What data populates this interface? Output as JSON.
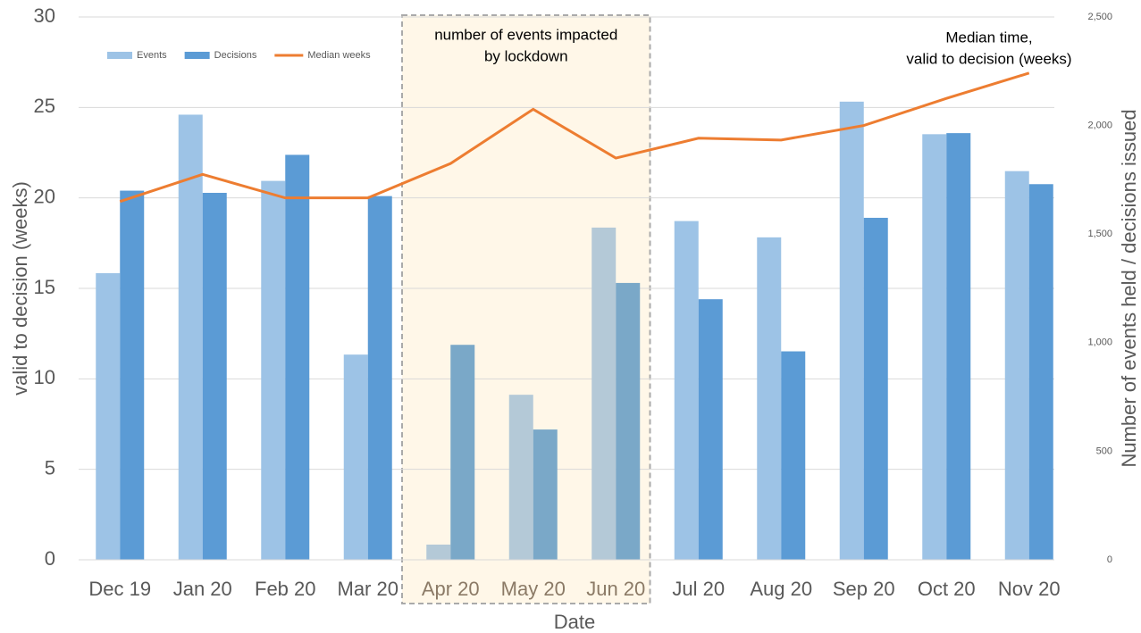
{
  "chart_data": {
    "type": "bar",
    "x_label": "Date",
    "y_label": "valid to decision (weeks)",
    "y2_label": "Number of events held / decisions issued",
    "categories": [
      "Dec 19",
      "Jan 20",
      "Feb 20",
      "Mar 20",
      "Apr 20",
      "May 20",
      "Jun 20",
      "Jul 20",
      "Aug 20",
      "Sep 20",
      "Oct 20",
      "Nov 20"
    ],
    "series": [
      {
        "name": "Events",
        "type": "bar",
        "axis": "y2",
        "color": "#9dc3e6",
        "highlight_color": "#b4c9d7",
        "values": [
          1320,
          2050,
          1745,
          945,
          70,
          760,
          1530,
          1560,
          1485,
          2110,
          1960,
          1790
        ]
      },
      {
        "name": "Decisions",
        "type": "bar",
        "axis": "y2",
        "color": "#5b9bd5",
        "highlight_color": "#7aa8c8",
        "values": [
          1700,
          1690,
          1865,
          1675,
          990,
          600,
          1275,
          1200,
          960,
          1575,
          1965,
          1730
        ]
      },
      {
        "name": "Median weeks",
        "type": "line",
        "axis": "y",
        "color": "#ed7d31",
        "values": [
          19.8,
          21.3,
          20.0,
          20.0,
          21.9,
          24.9,
          22.2,
          23.3,
          23.2,
          24.0,
          25.5,
          26.9
        ]
      }
    ],
    "ylim": [
      0,
      30
    ],
    "yticks": [
      0,
      5,
      10,
      15,
      20,
      25,
      30
    ],
    "y2lim": [
      0,
      2500
    ],
    "y2ticks": [
      0,
      500,
      {
        "value": 1000,
        "label": "1,000"
      },
      {
        "value": 1500,
        "label": "1,500"
      },
      {
        "value": 2000,
        "label": "2,000"
      },
      {
        "value": 2500,
        "label": "2,500"
      }
    ],
    "grid": true,
    "legend": "top-left",
    "highlight": {
      "text": [
        "number of events impacted",
        "by lockdown"
      ],
      "from": "Apr 20",
      "to": "Jun 20",
      "color": "#fff7e8",
      "label_color": "#8b7a66"
    },
    "annotation": [
      "Median time,",
      "valid to decision (weeks)"
    ]
  }
}
